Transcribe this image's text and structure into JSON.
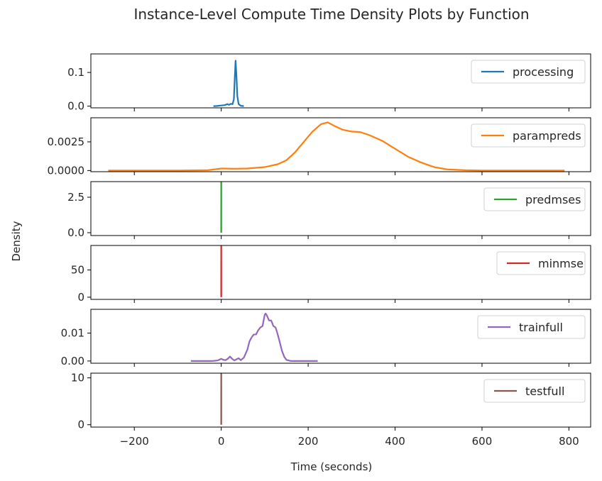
{
  "chart_data": {
    "type": "line",
    "title": "Instance-Level Compute Time Density Plots by Function",
    "xlabel": "Time (seconds)",
    "ylabel": "Density",
    "xlim": [
      -300,
      850
    ],
    "xticks": [
      -200,
      0,
      200,
      400,
      600,
      800
    ],
    "xtick_labels": [
      "−200",
      "0",
      "200",
      "400",
      "600",
      "800"
    ],
    "grid": false,
    "legend_position": "right",
    "subplots": [
      {
        "name": "processing",
        "color": "#1f77b4",
        "ylim": [
          -0.005,
          0.155
        ],
        "yticks": [
          0,
          0.1
        ],
        "ytick_labels": [
          "0.0",
          "0.1"
        ],
        "x": [
          -18,
          -10,
          0,
          8,
          14,
          18,
          22,
          26,
          29,
          31,
          33,
          35,
          37,
          40,
          45,
          52
        ],
        "y": [
          0.0,
          0.0005,
          0.002,
          0.003,
          0.006,
          0.004,
          0.007,
          0.006,
          0.02,
          0.08,
          0.135,
          0.09,
          0.03,
          0.006,
          0.001,
          0.0
        ]
      },
      {
        "name": "parampreds",
        "color": "#ff7f0e",
        "ylim": [
          -0.0001,
          0.0046
        ],
        "yticks": [
          0,
          0.0025
        ],
        "ytick_labels": [
          "0.0000",
          "0.0025"
        ],
        "x": [
          -260,
          -200,
          -100,
          -30,
          0,
          30,
          60,
          100,
          130,
          150,
          170,
          190,
          210,
          230,
          245,
          260,
          280,
          300,
          320,
          340,
          370,
          400,
          430,
          460,
          490,
          520,
          560,
          600,
          700,
          790
        ],
        "y": [
          0.0,
          0.0,
          0.0,
          3e-05,
          0.00018,
          0.00016,
          0.00018,
          0.0003,
          0.00055,
          0.0009,
          0.0016,
          0.0025,
          0.0034,
          0.00405,
          0.0042,
          0.0039,
          0.00355,
          0.0034,
          0.00335,
          0.0031,
          0.0026,
          0.0019,
          0.0012,
          0.0007,
          0.0003,
          0.0001,
          3e-05,
          0.0,
          0.0,
          0.0
        ]
      },
      {
        "name": "predmses",
        "color": "#2ca02c",
        "ylim": [
          -0.2,
          3.6
        ],
        "yticks": [
          0,
          2.5
        ],
        "ytick_labels": [
          "0.0",
          "2.5"
        ],
        "x": [
          -0.05,
          0,
          0.05
        ],
        "y": [
          0,
          3.6,
          0
        ]
      },
      {
        "name": "minmse",
        "color": "#d62728",
        "ylim": [
          -4,
          95
        ],
        "yticks": [
          0,
          50
        ],
        "ytick_labels": [
          "0",
          "50"
        ],
        "x": [
          -0.05,
          0,
          0.05
        ],
        "y": [
          0,
          95,
          0
        ]
      },
      {
        "name": "trainfull",
        "color": "#9467bd",
        "ylim": [
          -0.0008,
          0.0185
        ],
        "yticks": [
          0,
          0.01
        ],
        "ytick_labels": [
          "0.00",
          "0.01"
        ],
        "x": [
          -70,
          -40,
          -20,
          -8,
          0,
          5,
          10,
          15,
          20,
          25,
          30,
          35,
          40,
          45,
          52,
          60,
          65,
          70,
          75,
          80,
          85,
          90,
          95,
          100,
          102,
          105,
          110,
          115,
          120,
          125,
          130,
          135,
          140,
          145,
          150,
          160,
          175,
          200,
          222
        ],
        "y": [
          0,
          0,
          0,
          0.0002,
          0.0008,
          0.0004,
          0.0003,
          0.0008,
          0.0016,
          0.0008,
          0.0002,
          0.0006,
          0.001,
          0.0003,
          0.0012,
          0.004,
          0.007,
          0.0085,
          0.0095,
          0.0095,
          0.011,
          0.012,
          0.0125,
          0.0165,
          0.017,
          0.0163,
          0.0145,
          0.0145,
          0.0125,
          0.012,
          0.0095,
          0.0065,
          0.0035,
          0.0015,
          0.0004,
          0.0,
          0.0,
          0.0,
          0.0
        ]
      },
      {
        "name": "testfull",
        "color": "#8c564b",
        "ylim": [
          -0.5,
          11
        ],
        "yticks": [
          0,
          10
        ],
        "ytick_labels": [
          "0",
          "10"
        ],
        "x": [
          -0.05,
          0,
          0.05
        ],
        "y": [
          0,
          11,
          0
        ]
      }
    ]
  }
}
